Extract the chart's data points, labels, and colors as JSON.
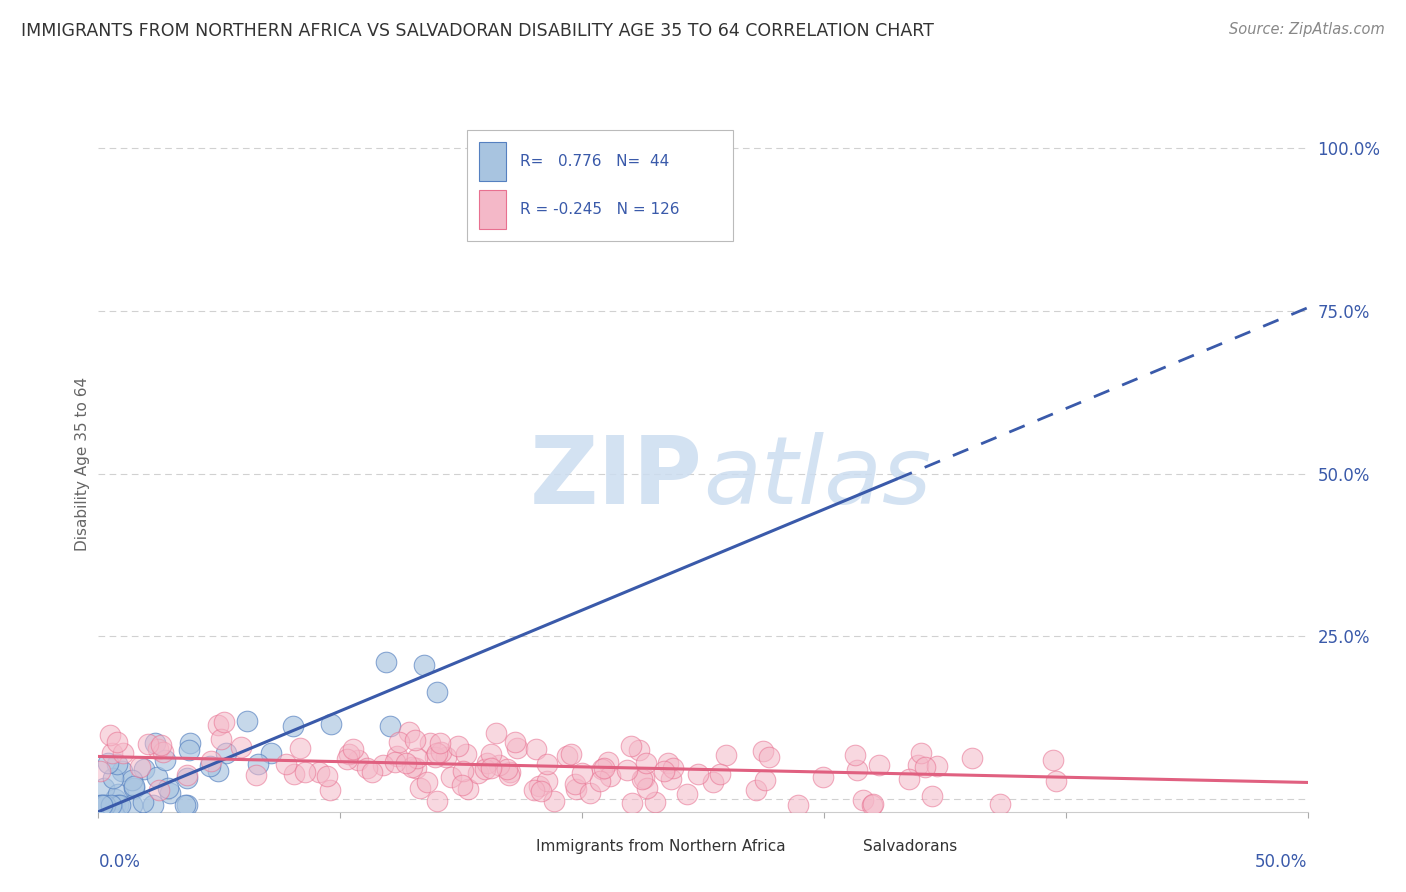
{
  "title": "IMMIGRANTS FROM NORTHERN AFRICA VS SALVADORAN DISABILITY AGE 35 TO 64 CORRELATION CHART",
  "source": "Source: ZipAtlas.com",
  "ylabel": "Disability Age 35 to 64",
  "xmin": 0.0,
  "xmax": 0.5,
  "ymin": -0.02,
  "ymax": 1.05,
  "yticks": [
    0.0,
    0.25,
    0.5,
    0.75,
    1.0
  ],
  "ytick_labels": [
    "",
    "25.0%",
    "50.0%",
    "75.0%",
    "100.0%"
  ],
  "blue_R": 0.776,
  "blue_N": 44,
  "pink_R": -0.245,
  "pink_N": 126,
  "blue_scatter_color": "#a8c4e0",
  "pink_scatter_color": "#f4b8c8",
  "blue_edge_color": "#5580c0",
  "pink_edge_color": "#e87090",
  "blue_line_color": "#3a5aaa",
  "pink_line_color": "#e06080",
  "watermark_color": "#ccddf0",
  "background_color": "#ffffff",
  "grid_color": "#cccccc",
  "title_color": "#333333",
  "stat_text_color": "#3a5aaa",
  "legend_text_color": "#333333",
  "blue_seed": 42,
  "pink_seed": 7,
  "blue_slope": 1.55,
  "blue_intercept": -0.02,
  "pink_slope": -0.08,
  "pink_intercept": 0.065
}
